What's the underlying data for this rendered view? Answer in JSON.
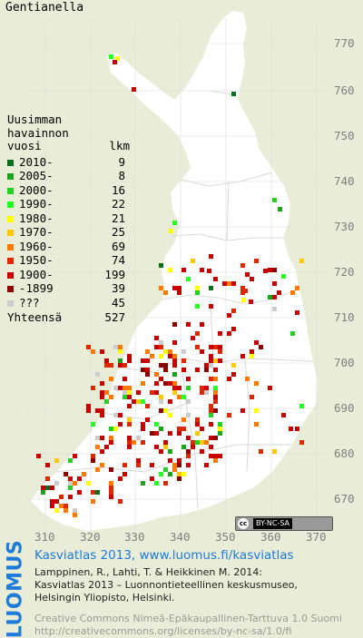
{
  "species": "Gentianella",
  "legend": {
    "heading": [
      "Uusimman",
      "havainnon"
    ],
    "col_year": "vuosi",
    "col_count": "lkm",
    "rows": [
      {
        "label": "2010-",
        "count": "9",
        "color": "#0a6e1a"
      },
      {
        "label": "2005-",
        "count": "8",
        "color": "#1aa51a"
      },
      {
        "label": "2000-",
        "count": "16",
        "color": "#22d222"
      },
      {
        "label": "1990-",
        "count": "22",
        "color": "#22ff22"
      },
      {
        "label": "1980-",
        "count": "21",
        "color": "#ffff00"
      },
      {
        "label": "1970-",
        "count": "25",
        "color": "#ffc800"
      },
      {
        "label": "1960-",
        "count": "69",
        "color": "#ff7800"
      },
      {
        "label": "1950-",
        "count": "74",
        "color": "#e02800"
      },
      {
        "label": "1900-",
        "count": "199",
        "color": "#c80000"
      },
      {
        "label": "-1899",
        "count": "39",
        "color": "#8c0000"
      },
      {
        "label": "???",
        "count": "45",
        "color": "#cccccc"
      }
    ],
    "total_label": "Yhteensä",
    "total_count": "527"
  },
  "y_ticks": [
    "770",
    "760",
    "750",
    "740",
    "730",
    "720",
    "710",
    "700",
    "690",
    "680",
    "670"
  ],
  "x_ticks": [
    "310",
    "320",
    "330",
    "340",
    "350",
    "360",
    "370"
  ],
  "cc_badge": {
    "logo": "cc",
    "text": "BY-NC-SA"
  },
  "brand": "LUOMUS",
  "credits": {
    "title": "Kasviatlas 2013, www.luomus.fi/kasviatlas",
    "citation": [
      "Lamppinen, R., Lahti, T. & Heikkinen M. 2014:",
      "Kasviatlas 2013 – Luonnontieteellinen keskusmuseo,",
      "Helsingin Yliopisto, Helsinki."
    ],
    "license": [
      "Creative Commons Nimeä-Epäkaupallinen-Tarttuva 1.0 Suomi",
      "http://creativecommons.org/licenses/by-nc-sa/1.0/fi"
    ]
  },
  "colors": {
    "map_fill": "#ffffff",
    "background": "#e9ecd6",
    "grid": "#cfcfcf",
    "tick_text": "#808080",
    "brand": "#1f7bd8"
  }
}
